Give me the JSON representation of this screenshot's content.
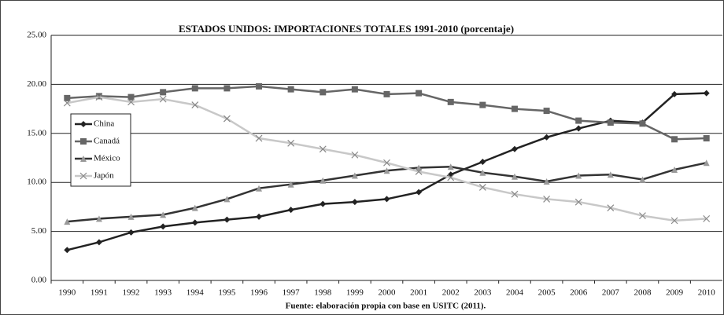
{
  "chart_data": {
    "type": "line",
    "title": "ESTADOS UNIDOS: IMPORTACIONES TOTALES 1991-2010 (porcentaje)",
    "source": "Fuente: elaboración propia con base en USITC (2011).",
    "categories": [
      "1990",
      "1991",
      "1992",
      "1993",
      "1994",
      "1995",
      "1996",
      "1997",
      "1998",
      "1999",
      "2000",
      "2001",
      "2002",
      "2003",
      "2004",
      "2005",
      "2006",
      "2007",
      "2008",
      "2009",
      "2010"
    ],
    "ylim": [
      0,
      25
    ],
    "yticks": [
      {
        "value": 0,
        "label": "0.00"
      },
      {
        "value": 5,
        "label": "5.00"
      },
      {
        "value": 10,
        "label": "10.00"
      },
      {
        "value": 15,
        "label": "15.00"
      },
      {
        "value": 20,
        "label": "20.00"
      },
      {
        "value": 25,
        "label": "25.00"
      }
    ],
    "grid": true,
    "legend": "left",
    "series": [
      {
        "name": "China",
        "color": "#222222",
        "marker": "diamond",
        "values": [
          3.1,
          3.9,
          4.9,
          5.5,
          5.9,
          6.2,
          6.5,
          7.2,
          7.8,
          8.0,
          8.3,
          9.0,
          10.8,
          12.1,
          13.4,
          14.6,
          15.5,
          16.3,
          16.1,
          19.0,
          19.1
        ]
      },
      {
        "name": "Canadá",
        "color": "#666666",
        "marker": "square",
        "values": [
          18.6,
          18.8,
          18.7,
          19.2,
          19.6,
          19.6,
          19.8,
          19.5,
          19.2,
          19.5,
          19.0,
          19.1,
          18.2,
          17.9,
          17.5,
          17.3,
          16.3,
          16.1,
          16.0,
          14.4,
          14.5
        ]
      },
      {
        "name": "México",
        "color": "#333333",
        "marker": "triangle",
        "values": [
          6.0,
          6.3,
          6.5,
          6.7,
          7.4,
          8.3,
          9.4,
          9.8,
          10.2,
          10.7,
          11.2,
          11.5,
          11.6,
          11.0,
          10.6,
          10.1,
          10.7,
          10.8,
          10.3,
          11.3,
          12.0
        ]
      },
      {
        "name": "Japón",
        "color": "#c8c8c8",
        "marker": "cross",
        "values": [
          18.1,
          18.7,
          18.2,
          18.5,
          17.9,
          16.5,
          14.5,
          14.0,
          13.4,
          12.8,
          12.0,
          11.1,
          10.5,
          9.5,
          8.8,
          8.3,
          8.0,
          7.4,
          6.6,
          6.1,
          6.3
        ]
      }
    ]
  }
}
